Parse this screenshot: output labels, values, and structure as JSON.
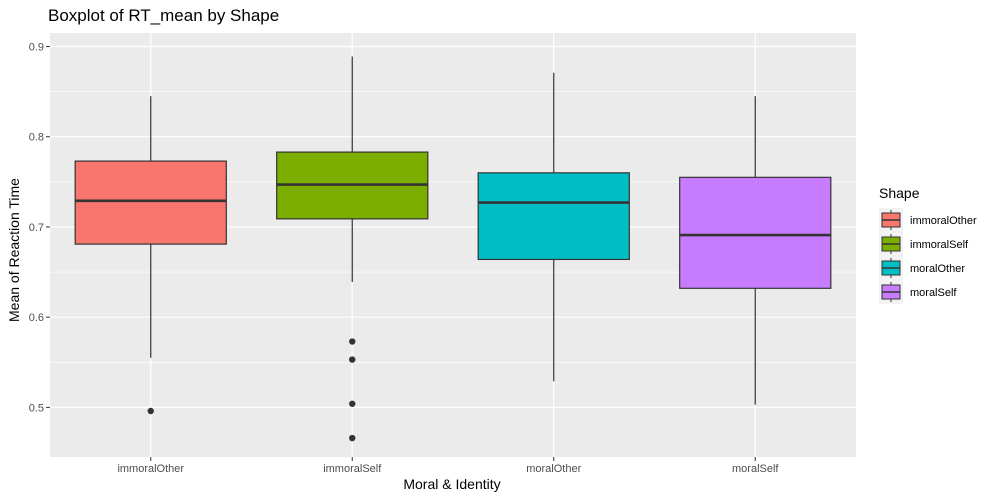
{
  "chart_data": {
    "type": "boxplot",
    "title": "Boxplot of RT_mean by Shape",
    "xlabel": "Moral & Identity",
    "ylabel": "Mean of Reaction Time",
    "ylim": [
      0.445,
      0.915
    ],
    "yticks": [
      0.5,
      0.6,
      0.7,
      0.8,
      0.9
    ],
    "grid": true,
    "legend": {
      "title": "Shape",
      "position": "right"
    },
    "categories": [
      "immoralOther",
      "immoralSelf",
      "moralOther",
      "moralSelf"
    ],
    "series": [
      {
        "name": "immoralOther",
        "color": "#F8766D",
        "q1": 0.681,
        "median": 0.729,
        "q3": 0.773,
        "whisker_low": 0.555,
        "whisker_high": 0.845,
        "outliers": [
          0.496
        ]
      },
      {
        "name": "immoralSelf",
        "color": "#7CAE00",
        "q1": 0.709,
        "median": 0.747,
        "q3": 0.783,
        "whisker_low": 0.639,
        "whisker_high": 0.889,
        "outliers": [
          0.573,
          0.553,
          0.504,
          0.466
        ]
      },
      {
        "name": "moralOther",
        "color": "#00BFC4",
        "q1": 0.664,
        "median": 0.727,
        "q3": 0.76,
        "whisker_low": 0.529,
        "whisker_high": 0.871,
        "outliers": []
      },
      {
        "name": "moralSelf",
        "color": "#C77CFF",
        "q1": 0.632,
        "median": 0.691,
        "q3": 0.755,
        "whisker_low": 0.503,
        "whisker_high": 0.845,
        "outliers": []
      }
    ],
    "colors": {
      "panel": "#EBEBEB",
      "grid": "#FFFFFF",
      "box_line": "#333333"
    }
  }
}
